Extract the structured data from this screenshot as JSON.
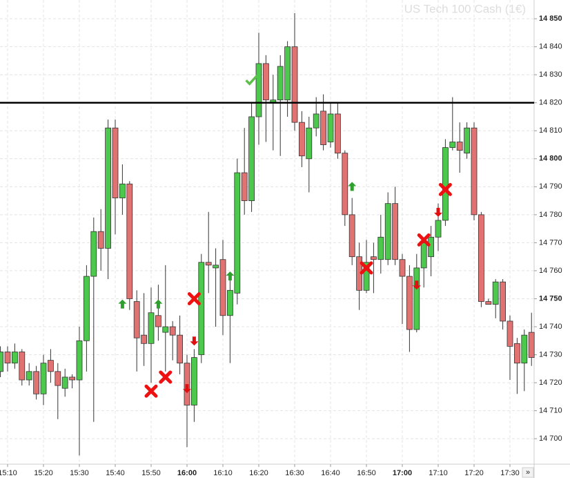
{
  "chart_data": {
    "type": "candlestick",
    "title": "US Tech 100 Cash (1€)",
    "categories": [
      null,
      "15:10",
      null,
      null,
      null,
      null,
      "15:20",
      null,
      null,
      null,
      null,
      "15:30",
      null,
      null,
      null,
      null,
      "15:40",
      null,
      null,
      null,
      null,
      "15:50",
      null,
      null,
      null,
      null,
      "16:00",
      null,
      null,
      null,
      null,
      "16:10",
      null,
      null,
      null,
      null,
      "16:20",
      null,
      null,
      null,
      null,
      "16:30",
      null,
      null,
      null,
      null,
      "16:40",
      null,
      null,
      null,
      null,
      "16:50",
      null,
      null,
      null,
      null,
      "17:00",
      null,
      null,
      null,
      null,
      "17:10",
      null,
      null,
      null,
      null,
      "17:20",
      null,
      null,
      null,
      null,
      "17:30",
      null,
      null,
      null
    ],
    "bold_categories": [
      "16:00",
      "17:00"
    ],
    "open": [
      14724,
      14731,
      14727,
      14731,
      14721,
      14724,
      14716,
      14728,
      14724,
      14718,
      14722,
      14721,
      14735,
      14758,
      14774,
      14768,
      14811,
      14786,
      14791,
      14749,
      14737,
      14734,
      14744,
      14738,
      14740,
      14737,
      14727,
      14712,
      14730,
      14763,
      14761,
      14764,
      14744,
      14752,
      14795,
      14785,
      14815,
      14834,
      14820,
      14821,
      14821,
      14840,
      14813,
      14800,
      14811,
      14817,
      14806,
      14816,
      14802,
      14780,
      14765,
      14753,
      14765,
      14764,
      14764,
      14784,
      14764,
      14758,
      14739,
      14761,
      14765,
      14772,
      14778,
      14804,
      14806,
      14802,
      14811,
      14780,
      14749,
      14748,
      14756,
      14742,
      14734,
      14727,
      14738
    ],
    "high": [
      14733,
      14733,
      14734,
      14732,
      14727,
      14726,
      14730,
      14732,
      14727,
      14725,
      14723,
      14740,
      14762,
      14779,
      14782,
      14814,
      14814,
      14798,
      14792,
      14753,
      14752,
      14754,
      14755,
      14762,
      14742,
      14744,
      14730,
      14732,
      14766,
      14781,
      14768,
      14771,
      14759,
      14800,
      14811,
      14820,
      14845,
      14837,
      14830,
      14837,
      14842,
      14852,
      14817,
      14815,
      14822,
      14823,
      14820,
      14820,
      14803,
      14786,
      14770,
      14771,
      14770,
      14780,
      14788,
      14790,
      14766,
      14762,
      14766,
      14771,
      14776,
      14784,
      14807,
      14822,
      14813,
      14813,
      14813,
      14781,
      14750,
      14757,
      14757,
      14744,
      14736,
      14739,
      14745
    ],
    "low": [
      14722,
      14724,
      14725,
      14719,
      14719,
      14714,
      14712,
      14720,
      14707,
      14715,
      14718,
      14694,
      14724,
      14706,
      14760,
      14757,
      14773,
      14780,
      14746,
      14724,
      14726,
      14720,
      14735,
      14724,
      14728,
      14723,
      14697,
      14706,
      14727,
      14752,
      14740,
      14737,
      14727,
      14748,
      14780,
      14781,
      14805,
      14806,
      14803,
      14801,
      14815,
      14810,
      14797,
      14788,
      14808,
      14803,
      14804,
      14800,
      14776,
      14762,
      14746,
      14752,
      14752,
      14759,
      14762,
      14762,
      14741,
      14731,
      14738,
      14754,
      14758,
      14767,
      14776,
      14803,
      14795,
      14800,
      14778,
      14747,
      14748,
      14743,
      14739,
      14721,
      14716,
      14717,
      14726
    ],
    "close": [
      14731,
      14727,
      14731,
      14721,
      14724,
      14716,
      14727,
      14724,
      14719,
      14722,
      14721,
      14735,
      14758,
      14774,
      14768,
      14811,
      14786,
      14791,
      14750,
      14736,
      14734,
      14745,
      14740,
      14740,
      14737,
      14727,
      14712,
      14729,
      14763,
      14762,
      14762,
      14744,
      14753,
      14795,
      14785,
      14815,
      14834,
      14821,
      14821,
      14833,
      14840,
      14813,
      14801,
      14811,
      14816,
      14805,
      14816,
      14802,
      14780,
      14765,
      14753,
      14763,
      14764,
      14772,
      14784,
      14764,
      14758,
      14739,
      14761,
      14770,
      14772,
      14778,
      14804,
      14806,
      14803,
      14811,
      14780,
      14749,
      14748,
      14756,
      14742,
      14733,
      14727,
      14737,
      14729
    ],
    "up_color": "#4cc94c",
    "down_color": "#e07272",
    "level": 14820,
    "markers": [
      {
        "shape": "up",
        "x": 17,
        "value": 14748
      },
      {
        "shape": "up",
        "x": 22,
        "value": 14748
      },
      {
        "shape": "up",
        "x": 32,
        "value": 14758
      },
      {
        "shape": "up",
        "x": 49,
        "value": 14790
      },
      {
        "shape": "down",
        "x": 26,
        "value": 14718
      },
      {
        "shape": "down",
        "x": 27,
        "value": 14735
      },
      {
        "shape": "down",
        "x": 58,
        "value": 14755
      },
      {
        "shape": "down",
        "x": 61,
        "value": 14781
      },
      {
        "shape": "cross",
        "x": 21,
        "value": 14717
      },
      {
        "shape": "cross",
        "x": 23,
        "value": 14722
      },
      {
        "shape": "cross",
        "x": 27,
        "value": 14750
      },
      {
        "shape": "cross",
        "x": 51,
        "value": 14761
      },
      {
        "shape": "cross",
        "x": 59,
        "value": 14771
      },
      {
        "shape": "cross",
        "x": 62,
        "value": 14789
      },
      {
        "shape": "check",
        "x": 35,
        "value": 14828
      }
    ],
    "ylim": [
      14690.9,
      14856.7
    ],
    "yticks": [
      {
        "value": 14700,
        "label": "14 700"
      },
      {
        "value": 14710,
        "label": "14 710"
      },
      {
        "value": 14720,
        "label": "14 720"
      },
      {
        "value": 14730,
        "label": "14 730"
      },
      {
        "value": 14740,
        "label": "14 740"
      },
      {
        "value": 14750,
        "label": "14 750"
      },
      {
        "value": 14760,
        "label": "14 760"
      },
      {
        "value": 14770,
        "label": "14 770"
      },
      {
        "value": 14780,
        "label": "14 780"
      },
      {
        "value": 14790,
        "label": "14 790"
      },
      {
        "value": 14800,
        "label": "14 800"
      },
      {
        "value": 14810,
        "label": "14 810"
      },
      {
        "value": 14820,
        "label": "14 820"
      },
      {
        "value": 14830,
        "label": "14 830"
      },
      {
        "value": 14840,
        "label": "14 840"
      },
      {
        "value": 14850,
        "label": "14 850"
      }
    ],
    "bold_ticks": [
      14750,
      14800,
      14850
    ],
    "grid": true,
    "button": "»"
  }
}
